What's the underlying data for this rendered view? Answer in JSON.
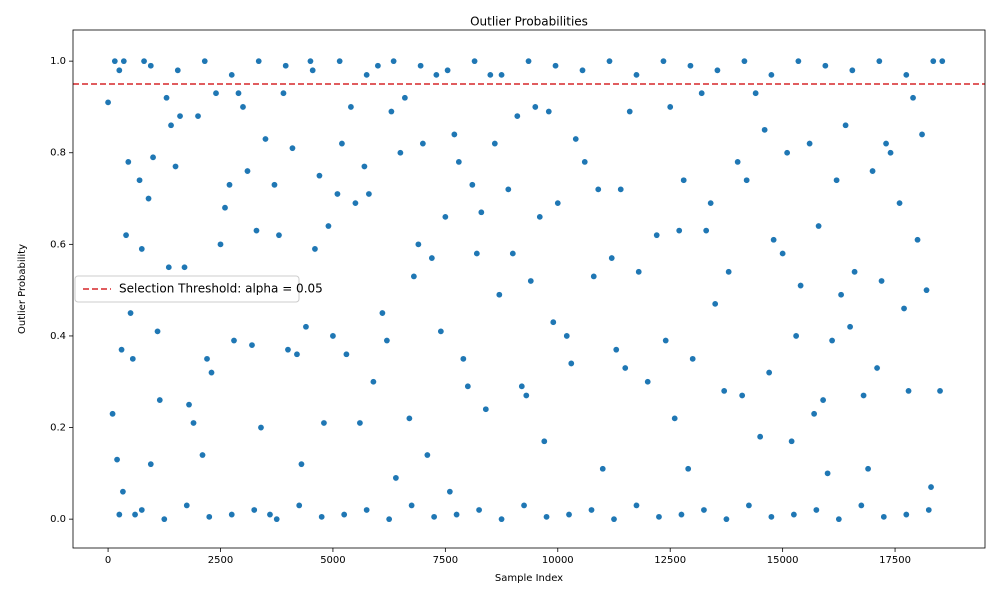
{
  "chart_data": {
    "type": "scatter",
    "title": "Outlier Probabilities",
    "x_label": "Sample Index",
    "y_label": "Outlier Probability",
    "color": "#1f77b4",
    "x": [
      0,
      100,
      150,
      200,
      250,
      300,
      330,
      400,
      450,
      500,
      550,
      600,
      700,
      750,
      800,
      900,
      950,
      1000,
      1100,
      1150,
      1300,
      1350,
      1400,
      1500,
      1600,
      1700,
      1800,
      1900,
      2000,
      2100,
      2200,
      2300,
      2400,
      2500,
      2600,
      2700,
      2800,
      2900,
      3000,
      3100,
      3200,
      3300,
      3400,
      3500,
      3600,
      3700,
      3800,
      3900,
      4000,
      4100,
      4200,
      4300,
      4400,
      4500,
      4600,
      4700,
      4800,
      4900,
      5000,
      5100,
      5200,
      5300,
      5400,
      5500,
      5600,
      5700,
      5800,
      5900,
      6000,
      6100,
      6200,
      6300,
      6400,
      6500,
      6600,
      6700,
      6800,
      6900,
      7000,
      7100,
      7200,
      7300,
      7400,
      7500,
      7600,
      7700,
      7800,
      7900,
      8000,
      8100,
      8200,
      8300,
      8400,
      8500,
      8600,
      8700,
      8900,
      9000,
      9100,
      9200,
      9300,
      9400,
      9500,
      9600,
      9700,
      9800,
      9900,
      10000,
      10200,
      10300,
      10400,
      10600,
      10800,
      10900,
      11000,
      11200,
      11300,
      11400,
      11500,
      11600,
      11800,
      12000,
      12200,
      12400,
      12500,
      12600,
      12700,
      12800,
      12900,
      13000,
      13200,
      13300,
      13400,
      13500,
      13700,
      13800,
      14000,
      14100,
      14200,
      14400,
      14500,
      14600,
      14700,
      14800,
      15000,
      15100,
      15200,
      15300,
      15400,
      15600,
      15700,
      15800,
      15900,
      16000,
      16100,
      16200,
      16300,
      16400,
      16500,
      16600,
      16800,
      16900,
      17000,
      17100,
      17200,
      17300,
      17400,
      17600,
      17700,
      17800,
      17900,
      18000,
      18100,
      18200,
      18300,
      18500,
      18550,
      250,
      750,
      1250,
      1750,
      2250,
      2750,
      3250,
      3750,
      4250,
      4750,
      5250,
      5750,
      6250,
      6750,
      7250,
      7750,
      8250,
      8750,
      9250,
      9750,
      10250,
      10750,
      11250,
      11750,
      12250,
      12750,
      13250,
      13750,
      14250,
      14750,
      15250,
      15750,
      16250,
      16750,
      17250,
      17750,
      18250,
      350,
      950,
      1550,
      2150,
      2750,
      3350,
      3950,
      4550,
      5150,
      5750,
      6350,
      6950,
      7550,
      8150,
      8750,
      9350,
      9950,
      10550,
      11150,
      11750,
      12350,
      12950,
      13550,
      14150,
      14750,
      15350,
      15950,
      16550,
      17150,
      17750,
      18350
    ],
    "values": [
      0.91,
      0.23,
      1.0,
      0.13,
      0.98,
      0.37,
      0.06,
      0.62,
      0.78,
      0.45,
      0.35,
      0.01,
      0.74,
      0.59,
      1.0,
      0.7,
      0.12,
      0.79,
      0.41,
      0.26,
      0.92,
      0.55,
      0.86,
      0.77,
      0.88,
      0.55,
      0.25,
      0.21,
      0.88,
      0.14,
      0.35,
      0.32,
      0.93,
      0.6,
      0.68,
      0.73,
      0.39,
      0.93,
      0.9,
      0.76,
      0.38,
      0.63,
      0.2,
      0.83,
      0.01,
      0.73,
      0.62,
      0.93,
      0.37,
      0.81,
      0.36,
      0.12,
      0.42,
      1.0,
      0.59,
      0.75,
      0.21,
      0.64,
      0.4,
      0.71,
      0.82,
      0.36,
      0.9,
      0.69,
      0.21,
      0.77,
      0.71,
      0.3,
      0.99,
      0.45,
      0.39,
      0.89,
      0.09,
      0.8,
      0.92,
      0.22,
      0.53,
      0.6,
      0.82,
      0.14,
      0.57,
      0.97,
      0.41,
      0.66,
      0.06,
      0.84,
      0.78,
      0.35,
      0.29,
      0.73,
      0.58,
      0.67,
      0.24,
      0.97,
      0.82,
      0.49,
      0.72,
      0.58,
      0.88,
      0.29,
      0.27,
      0.52,
      0.9,
      0.66,
      0.17,
      0.89,
      0.43,
      0.69,
      0.4,
      0.34,
      0.83,
      0.78,
      0.53,
      0.72,
      0.11,
      0.57,
      0.37,
      0.72,
      0.33,
      0.89,
      0.54,
      0.3,
      0.62,
      0.39,
      0.9,
      0.22,
      0.63,
      0.74,
      0.11,
      0.35,
      0.93,
      0.63,
      0.69,
      0.47,
      0.28,
      0.54,
      0.78,
      0.27,
      0.74,
      0.93,
      0.18,
      0.85,
      0.32,
      0.61,
      0.58,
      0.8,
      0.17,
      0.4,
      0.51,
      0.82,
      0.23,
      0.64,
      0.26,
      0.1,
      0.39,
      0.74,
      0.49,
      0.86,
      0.42,
      0.54,
      0.27,
      0.11,
      0.76,
      0.33,
      0.52,
      0.82,
      0.8,
      0.69,
      0.46,
      0.28,
      0.92,
      0.61,
      0.84,
      0.5,
      0.07,
      0.28,
      1.0,
      0.01,
      0.02,
      0,
      0.03,
      0.005,
      0.01,
      0.02,
      0,
      0.03,
      0.005,
      0.01,
      0.02,
      0,
      0.03,
      0.005,
      0.01,
      0.02,
      0,
      0.03,
      0.005,
      0.01,
      0.02,
      0,
      0.03,
      0.005,
      0.01,
      0.02,
      0,
      0.03,
      0.005,
      0.01,
      0.02,
      0,
      0.03,
      0.005,
      0.01,
      0.02,
      1,
      0.99,
      0.98,
      1,
      0.97,
      1,
      0.99,
      0.98,
      1,
      0.97,
      1,
      0.99,
      0.98,
      1,
      0.97,
      1,
      0.99,
      0.98,
      1,
      0.97,
      1,
      0.99,
      0.98,
      1,
      0.97,
      1,
      0.99,
      0.98,
      1,
      0.97,
      1
    ],
    "threshold": {
      "value": 0.95,
      "label": "Selection Threshold: alpha = 0.05",
      "color": "#d62728"
    },
    "legend": "center left",
    "xlim": [
      -780,
      19500
    ],
    "xticks": [
      0,
      2500,
      5000,
      7500,
      10000,
      12500,
      15000,
      17500
    ],
    "ylim": [
      -0.063,
      1.068
    ],
    "yticks": [
      {
        "value": 0,
        "label": "0.0"
      },
      0.2,
      0.4,
      0.6,
      0.8,
      {
        "value": 1,
        "label": "1.0"
      }
    ],
    "grid": false
  }
}
